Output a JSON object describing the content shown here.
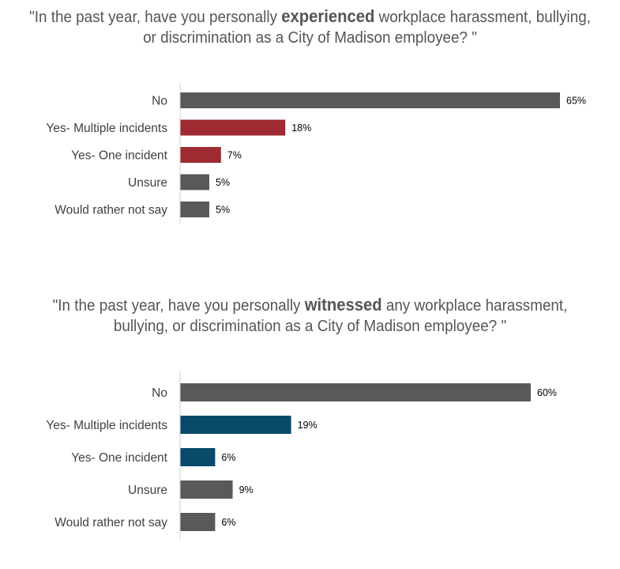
{
  "charts_text": [
    {
      "title_before": "\"In the past year, have you personally ",
      "title_emph": "experienced",
      "title_after": " workplace harassment, bullying, or discrimination as a City of Madison employee? \""
    },
    {
      "title_before": "\"In the past year, have you personally ",
      "title_emph": "witnessed",
      "title_after": " any workplace harassment, bullying, or discrimination as a City of Madison employee? \""
    }
  ],
  "chart_data": [
    {
      "type": "bar",
      "orientation": "horizontal",
      "title": "\"In the past year, have you personally experienced workplace harassment, bullying, or discrimination as a City of Madison employee? \"",
      "categories": [
        "No",
        "Yes- Multiple incidents",
        "Yes- One incident",
        "Unsure",
        "Would rather not say"
      ],
      "values": [
        65,
        18,
        7,
        5,
        5
      ],
      "value_labels": [
        "65%",
        "18%",
        "7%",
        "5%",
        "5%"
      ],
      "colors": [
        "#595959",
        "#9e2a32",
        "#9e2a32",
        "#595959",
        "#595959"
      ],
      "xlim": [
        0,
        100
      ],
      "grid": false,
      "legend": "none"
    },
    {
      "type": "bar",
      "orientation": "horizontal",
      "title": "\"In the past year, have you personally witnessed any workplace harassment, bullying, or discrimination as a City of Madison employee? \"",
      "categories": [
        "No",
        "Yes- Multiple incidents",
        "Yes- One incident",
        "Unsure",
        "Would rather not say"
      ],
      "values": [
        60,
        19,
        6,
        9,
        6
      ],
      "value_labels": [
        "60%",
        "19%",
        "6%",
        "9%",
        "6%"
      ],
      "colors": [
        "#595959",
        "#074a69",
        "#074a69",
        "#595959",
        "#595959"
      ],
      "xlim": [
        0,
        100
      ],
      "grid": false,
      "legend": "none"
    }
  ]
}
